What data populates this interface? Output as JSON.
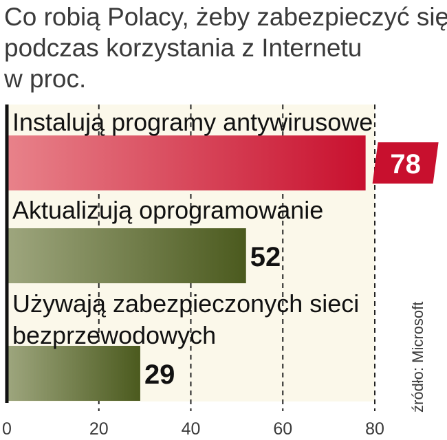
{
  "title": [
    "Co robią Polacy, żeby zabezpieczyć się",
    "podczas korzystania z Internetu",
    "w proc."
  ],
  "source": "źródło: Microsoft",
  "colors": {
    "highlight_bar_left": "#e8828a",
    "highlight_bar_right": "#c8102e",
    "bar_left": "#9ea67e",
    "bar_right": "#4b5a1e",
    "highlight_badge": "#c8102e",
    "axis": "#111111",
    "panel": "#fbf8ea"
  },
  "chart_data": {
    "type": "bar",
    "orientation": "horizontal",
    "categories": [
      [
        "Instalują programy antywirusowe"
      ],
      [
        "Aktualizują oprogramowanie"
      ],
      [
        "Używają zabezpieczonych sieci",
        "bezprzewodowych"
      ]
    ],
    "values": [
      78,
      52,
      29
    ],
    "value_labels": [
      "78",
      "52",
      "29"
    ],
    "highlighted_index": 0,
    "xlim": [
      0,
      80
    ],
    "xticks": [
      0,
      20,
      40,
      60,
      80
    ],
    "xtick_labels": [
      "0",
      "20",
      "40",
      "60",
      "80"
    ],
    "grid": "vertical dashed"
  }
}
